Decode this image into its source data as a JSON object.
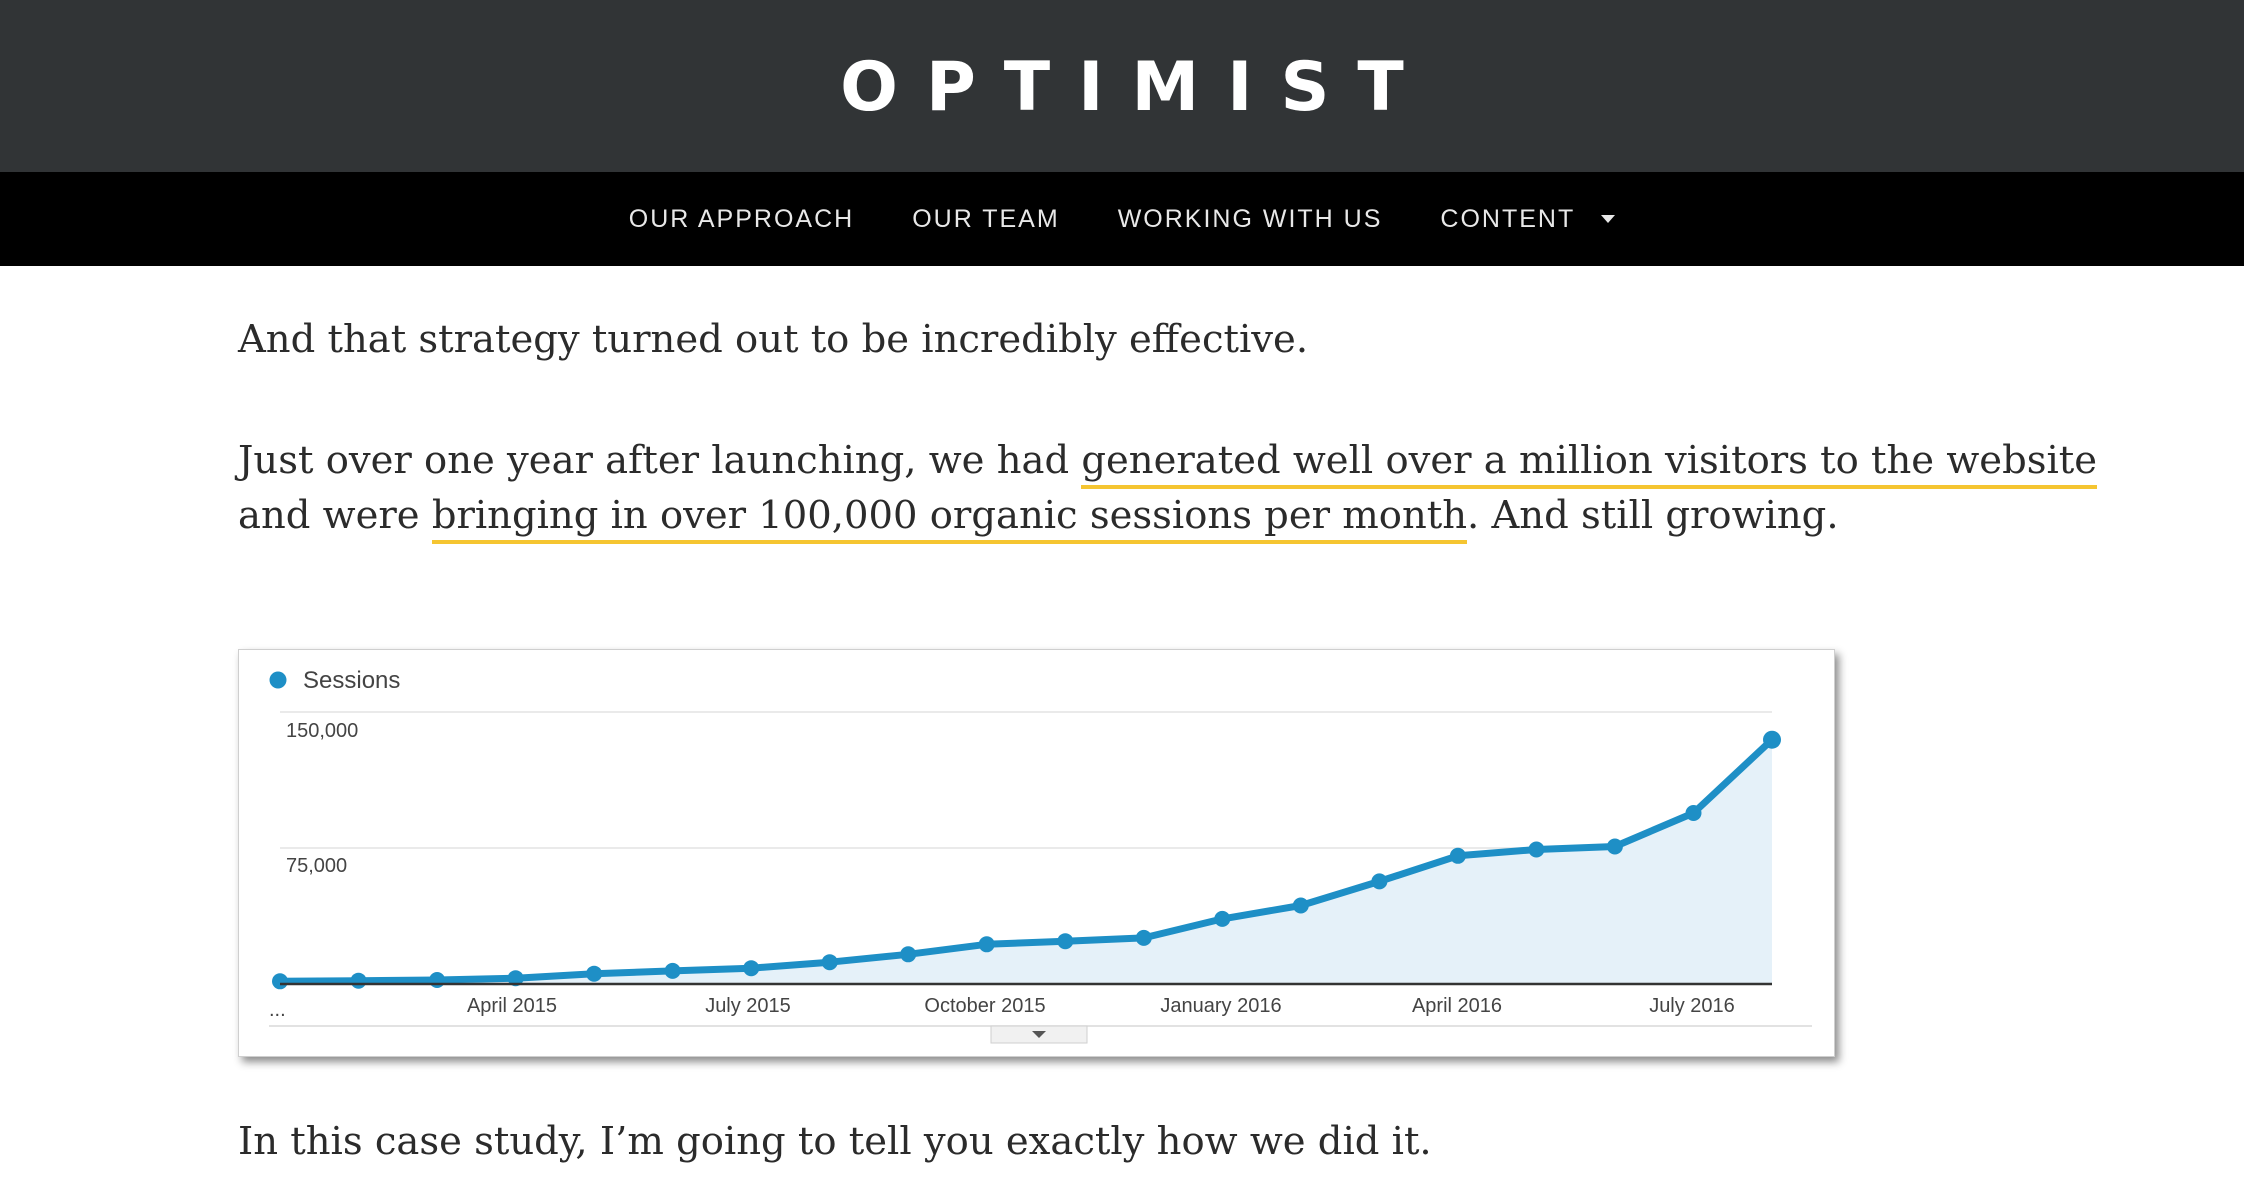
{
  "header": {
    "logo": "OPTIMIST"
  },
  "nav": {
    "items": [
      {
        "label": "OUR APPROACH"
      },
      {
        "label": "OUR TEAM"
      },
      {
        "label": "WORKING WITH US"
      },
      {
        "label": "CONTENT",
        "has_dropdown": true
      }
    ]
  },
  "article": {
    "p1": "And that strategy turned out to be incredibly effective.",
    "p2": {
      "a": "Just over one year after launching, we had ",
      "hl1": "generated well over a million visitors to the website",
      "b": "and were ",
      "hl2": "bringing in over 100,000 organic sessions per month",
      "c": ". And still growing."
    },
    "p3": "In this case study, I’m going to tell you exactly how we did it."
  },
  "colors": {
    "header_bg": "#313436",
    "nav_bg": "#000000",
    "highlight": "#f5c531",
    "series": "#1e8fc6",
    "area_fill": "#e5f1f9"
  },
  "chart_data": {
    "type": "area",
    "legend": "Sessions",
    "y_ticks": [
      "150,000",
      "75,000"
    ],
    "ylim": [
      0,
      150000
    ],
    "x_ticks": [
      "...",
      "April 2015",
      "July 2015",
      "October 2015",
      "January 2016",
      "April 2016",
      "July 2016"
    ],
    "x": [
      "Jan 2015",
      "Feb 2015",
      "Mar 2015",
      "Apr 2015",
      "May 2015",
      "Jun 2015",
      "Jul 2015",
      "Aug 2015",
      "Sep 2015",
      "Oct 2015",
      "Nov 2015",
      "Dec 2015",
      "Jan 2016",
      "Feb 2016",
      "Mar 2016",
      "Apr 2016",
      "May 2016",
      "Jun 2016",
      "Jul 2016",
      "Aug 2016"
    ],
    "values": [
      1500,
      1800,
      2200,
      3200,
      5700,
      7200,
      8700,
      12000,
      16400,
      21900,
      23600,
      25400,
      35900,
      43300,
      56600,
      70700,
      74200,
      75800,
      94300,
      134700
    ],
    "grid": true
  }
}
